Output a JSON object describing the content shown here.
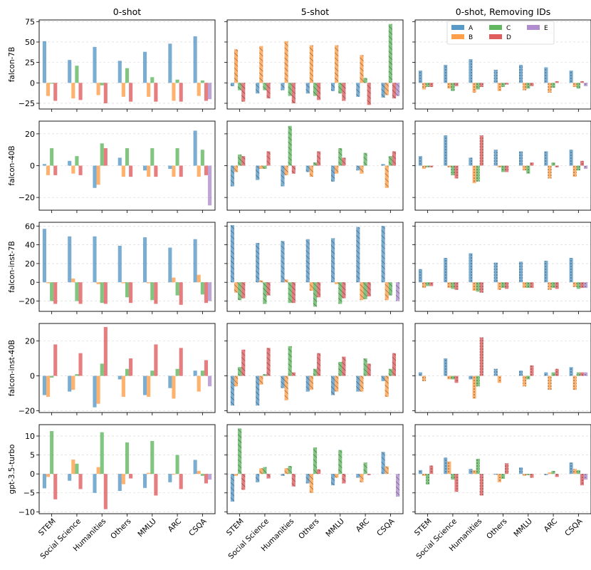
{
  "colors": {
    "A": "#1f77b4",
    "B": "#ff7f0e",
    "C": "#2ca02c",
    "D": "#d62728",
    "E": "#9467bd"
  },
  "chart_data": {
    "type": "bar",
    "column_titles": [
      "0-shot",
      "5-shot",
      "0-shot, Removing IDs"
    ],
    "row_labels": [
      "falcon-7B",
      "falcon-40B",
      "falcon-inst-7B",
      "falcon-inst-40B",
      "gpt-3.5-turbo"
    ],
    "categories": [
      "STEM",
      "Social Science",
      "Humanities",
      "Others",
      "MMLU",
      "ARC",
      "CSQA"
    ],
    "series": [
      "A",
      "B",
      "C",
      "D",
      "E"
    ],
    "legend": {
      "entries": [
        "A",
        "B",
        "C",
        "D",
        "E"
      ],
      "position": "top-right of panel row 1, column 3"
    },
    "rows": [
      {
        "ylim": [
          -32,
          77
        ],
        "yticks": [
          -25,
          0,
          25,
          50,
          75
        ],
        "yticklabels": [
          "−25",
          "0",
          "25",
          "50",
          "75"
        ],
        "panels": [
          {
            "values": {
              "A": [
                51,
                28,
                44,
                27,
                38,
                48,
                57
              ],
              "B": [
                -16,
                -19,
                -15,
                -17,
                -17,
                -22,
                -16
              ],
              "C": [
                -1,
                21,
                -3,
                18,
                7,
                4,
                3
              ],
              "D": [
                -22,
                -21,
                -25,
                -23,
                -23,
                -23,
                -22
              ],
              "E": [
                0,
                0,
                0,
                0,
                0,
                0,
                -20
              ]
            }
          },
          {
            "values": {
              "A": [
                -4,
                -13,
                -9,
                -13,
                -10,
                -17,
                -18
              ],
              "B": [
                41,
                45,
                51,
                46,
                46,
                34,
                -15
              ],
              "C": [
                -9,
                -9,
                -16,
                -16,
                -13,
                6,
                72
              ],
              "D": [
                -23,
                -19,
                -25,
                -21,
                -22,
                -27,
                -19
              ],
              "E": [
                0,
                0,
                0,
                0,
                0,
                0,
                -16
              ]
            }
          },
          {
            "values": {
              "A": [
                15,
                22,
                29,
                16,
                22,
                19,
                15
              ],
              "B": [
                -8,
                -7,
                -12,
                -10,
                -9,
                -12,
                -5
              ],
              "C": [
                -5,
                -10,
                -8,
                -5,
                -7,
                -6,
                -7
              ],
              "D": [
                -5,
                -4,
                -5,
                -2,
                -4,
                2,
                2
              ],
              "E": [
                0,
                0,
                0,
                0,
                0,
                0,
                -4
              ]
            }
          }
        ]
      },
      {
        "ylim": [
          -28,
          28
        ],
        "yticks": [
          -20,
          0,
          20
        ],
        "yticklabels": [
          "−20",
          "0",
          "20"
        ],
        "panels": [
          {
            "values": {
              "A": [
                1,
                3,
                -14,
                5,
                -3,
                -2,
                22
              ],
              "B": [
                -6,
                -5,
                -12,
                -7,
                -7,
                -7,
                -7
              ],
              "C": [
                11,
                6,
                14,
                11,
                11,
                11,
                10
              ],
              "D": [
                -6,
                -6,
                11,
                -7,
                -7,
                -7,
                -6
              ],
              "E": [
                0,
                0,
                0,
                0,
                0,
                0,
                -25
              ]
            }
          },
          {
            "values": {
              "A": [
                -13,
                -9,
                -13,
                -4,
                -10,
                -3,
                1
              ],
              "B": [
                -4,
                -2,
                -6,
                -7,
                -5,
                -5,
                -14
              ],
              "C": [
                7,
                -2,
                25,
                2,
                11,
                8,
                6
              ],
              "D": [
                6,
                9,
                -5,
                9,
                5,
                0,
                9
              ],
              "E": [
                0,
                0,
                0,
                0,
                0,
                0,
                0
              ]
            }
          },
          {
            "values": {
              "A": [
                6,
                19,
                5,
                10,
                9,
                9,
                10
              ],
              "B": [
                -2,
                -1,
                -11,
                -1,
                -3,
                -8,
                -7
              ],
              "C": [
                -1,
                -6,
                -10,
                -4,
                -5,
                2,
                -3
              ],
              "D": [
                -1,
                -8,
                19,
                -4,
                2,
                -1,
                3
              ],
              "E": [
                0,
                0,
                0,
                0,
                0,
                0,
                -2
              ]
            }
          }
        ]
      },
      {
        "ylim": [
          -31,
          64
        ],
        "yticks": [
          -20,
          0,
          20,
          40,
          60
        ],
        "yticklabels": [
          "−20",
          "0",
          "20",
          "40",
          "60"
        ],
        "panels": [
          {
            "values": {
              "A": [
                57,
                49,
                49,
                39,
                48,
                37,
                46
              ],
              "B": [
                -1,
                4,
                -2,
                -1,
                -1,
                5,
                8
              ],
              "C": [
                -20,
                -20,
                -22,
                -16,
                -19,
                -14,
                -13
              ],
              "D": [
                -23,
                -23,
                -23,
                -22,
                -23,
                -24,
                -22
              ],
              "E": [
                0,
                0,
                0,
                0,
                0,
                0,
                -20
              ]
            }
          },
          {
            "values": {
              "A": [
                61,
                42,
                44,
                46,
                47,
                59,
                60
              ],
              "B": [
                -11,
                2,
                3,
                -9,
                -2,
                -19,
                -19
              ],
              "C": [
                -19,
                -23,
                -22,
                -26,
                -23,
                -18,
                -14
              ],
              "D": [
                -17,
                -14,
                -22,
                -16,
                -17,
                -15,
                0
              ],
              "E": [
                0,
                0,
                0,
                0,
                0,
                0,
                -20
              ]
            }
          },
          {
            "values": {
              "A": [
                14,
                26,
                31,
                21,
                22,
                23,
                26
              ],
              "B": [
                -6,
                -6,
                -9,
                -8,
                -6,
                -8,
                -5
              ],
              "C": [
                -4,
                -7,
                -10,
                -6,
                -6,
                -6,
                -7
              ],
              "D": [
                -4,
                -8,
                -11,
                -7,
                -6,
                -7,
                -6
              ],
              "E": [
                0,
                0,
                0,
                0,
                0,
                0,
                -6
              ]
            }
          }
        ]
      },
      {
        "ylim": [
          -21,
          30
        ],
        "yticks": [
          -20,
          0,
          20
        ],
        "yticklabels": [
          "−20",
          "0",
          "20"
        ],
        "panels": [
          {
            "values": {
              "A": [
                -11,
                -9,
                -18,
                -2,
                -11,
                -7,
                3
              ],
              "B": [
                -12,
                -8,
                -16,
                -12,
                -12,
                -13,
                -9
              ],
              "C": [
                -1,
                1,
                7,
                4,
                3,
                4,
                3
              ],
              "D": [
                18,
                13,
                28,
                10,
                18,
                16,
                9
              ],
              "E": [
                0,
                0,
                0,
                0,
                0,
                0,
                -6
              ]
            }
          },
          {
            "values": {
              "A": [
                -17,
                -17,
                -7,
                -9,
                -11,
                -9,
                -3
              ],
              "B": [
                -6,
                -5,
                -14,
                -8,
                -9,
                -9,
                -12
              ],
              "C": [
                5,
                1,
                17,
                4,
                8,
                10,
                4
              ],
              "D": [
                15,
                16,
                2,
                13,
                11,
                7,
                13
              ],
              "E": [
                0,
                0,
                0,
                0,
                0,
                0,
                0
              ]
            }
          },
          {
            "values": {
              "A": [
                2,
                10,
                -2,
                4,
                3,
                2,
                5
              ],
              "B": [
                -3,
                -2,
                -13,
                -4,
                -6,
                -8,
                -8
              ],
              "C": [
                0,
                -2,
                -6,
                0,
                -2,
                2,
                2
              ],
              "D": [
                0,
                -4,
                22,
                0,
                6,
                4,
                2
              ],
              "E": [
                0,
                0,
                0,
                0,
                0,
                0,
                2
              ]
            }
          }
        ]
      },
      {
        "ylim": [
          -10.5,
          13
        ],
        "yticks": [
          -10,
          -5,
          0,
          5,
          10
        ],
        "yticklabels": [
          "−10",
          "−5",
          "0",
          "5",
          "10"
        ],
        "panels": [
          {
            "values": {
              "A": [
                -3.8,
                -1.8,
                -5,
                -4.5,
                -3.7,
                -2.2,
                3.7
              ],
              "B": [
                -0.8,
                3.8,
                1.8,
                -2.7,
                0.3,
                -0.2,
                0.8
              ],
              "C": [
                11.3,
                2.7,
                11,
                8.3,
                8.7,
                5,
                -0.5
              ],
              "D": [
                -6.7,
                -4,
                -9.3,
                -1.2,
                -5.7,
                -4,
                -2.5
              ],
              "E": [
                0,
                0,
                0,
                0,
                0,
                0,
                -1.5
              ]
            }
          },
          {
            "values": {
              "A": [
                -7.3,
                -2.2,
                -0.5,
                -2.5,
                -3,
                -1,
                5.8
              ],
              "B": [
                -0.5,
                1.5,
                1.5,
                -5,
                -1,
                -2.2,
                2
              ],
              "C": [
                12,
                1.8,
                2.1,
                7,
                6.3,
                3,
                0
              ],
              "D": [
                -4.2,
                -1.2,
                -3.3,
                1.2,
                -2.5,
                -0.3,
                0
              ],
              "E": [
                0,
                0,
                0,
                0,
                0,
                0,
                -6
              ]
            }
          },
          {
            "values": {
              "A": [
                1,
                4.3,
                1.3,
                -0.2,
                1.7,
                -0.3,
                3
              ],
              "B": [
                -0.5,
                3.3,
                1,
                -2.2,
                -0.5,
                0.4,
                1.3
              ],
              "C": [
                -2.8,
                -1.5,
                4,
                -1.3,
                -0.3,
                0.8,
                1
              ],
              "D": [
                2.2,
                -4.7,
                -5.7,
                2.8,
                -1,
                -0.8,
                -3
              ],
              "E": [
                0,
                0,
                0,
                0,
                0,
                0,
                -1.5
              ]
            }
          }
        ]
      }
    ]
  }
}
